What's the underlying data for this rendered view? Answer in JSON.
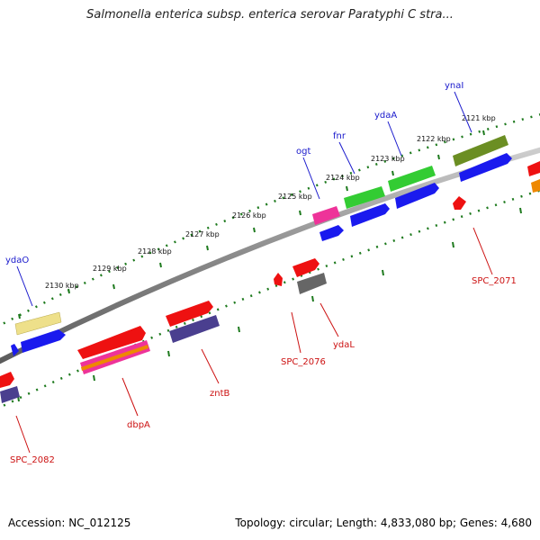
{
  "header": {
    "title": "Salmonella enterica subsp. enterica serovar Paratyphi C stra..."
  },
  "footer": {
    "accession": "Accession: NC_012125",
    "topology": "Topology: circular; Length: 4,833,080 bp; Genes: 4,680"
  },
  "ticks": [
    {
      "label": "2121 kbp"
    },
    {
      "label": "2122 kbp"
    },
    {
      "label": "2123 kbp"
    },
    {
      "label": "2124 kbp"
    },
    {
      "label": "2125 kbp"
    },
    {
      "label": "2126 kbp"
    },
    {
      "label": "2127 kbp"
    },
    {
      "label": "2128 kbp"
    },
    {
      "label": "2129 kbp"
    },
    {
      "label": "2130 kbp"
    }
  ],
  "genes": {
    "ynaI": "ynaI",
    "ydaA": "ydaA",
    "fnr": "fnr",
    "ogt": "ogt",
    "ydaO": "ydaO",
    "SPC_2071": "SPC_2071",
    "ydaL": "ydaL",
    "SPC_2076": "SPC_2076",
    "zntB": "zntB",
    "dbpA": "dbpA",
    "SPC_2082": "SPC_2082"
  },
  "colors": {
    "backbone": "#888888",
    "tick": "#1e7a1e",
    "forward_label": "#1a1acc",
    "reverse_label": "#cc1111",
    "cds_blue": "#1a1aee",
    "cds_red": "#ee1111",
    "cds_green": "#33cc33",
    "cds_olive": "#6b8e23",
    "cds_khaki": "#eee08a",
    "cds_pink": "#ee3399",
    "cds_gray": "#666666",
    "cds_navy": "#4a3f8f",
    "cds_orange": "#ee8800"
  }
}
